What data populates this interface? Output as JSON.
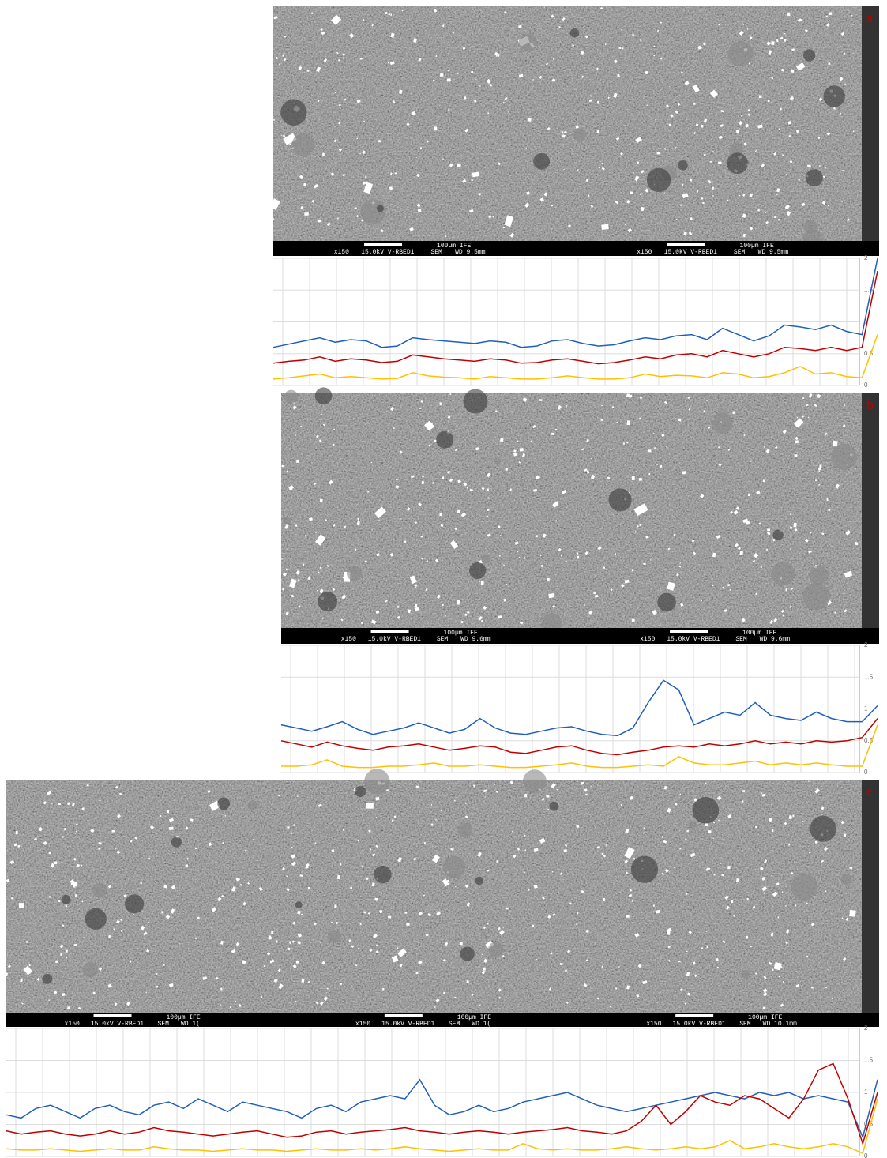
{
  "panels": [
    {
      "label": "a",
      "scale_bars": [
        {
          "scale": "100µm IFE",
          "mag": "x150",
          "kv": "15.0kV V-RBED1",
          "mode": "SEM",
          "wd": "WD 9.5mm"
        },
        {
          "scale": "100µm IFE",
          "mag": "x150",
          "kv": "15.0kV V-RBED1",
          "mode": "SEM",
          "wd": "WD 9.5mm"
        }
      ]
    },
    {
      "label": "b",
      "scale_bars": [
        {
          "scale": "100µm IFE",
          "mag": "x150",
          "kv": "15.0kV V-RBED1",
          "mode": "SEM",
          "wd": "WD 9.6mm"
        },
        {
          "scale": "100µm IFE",
          "mag": "x150",
          "kv": "15.0kV V-RBED1",
          "mode": "SEM",
          "wd": "WD 9.6mm"
        }
      ]
    },
    {
      "label": "c",
      "scale_bars": [
        {
          "scale": "100µm IFE",
          "mag": "x150",
          "kv": "15.0kV V-RBED1",
          "mode": "SEM",
          "wd": "WD 1("
        },
        {
          "scale": "100µm IFE",
          "mag": "x150",
          "kv": "15.0kV V-RBED1",
          "mode": "SEM",
          "wd": "WD 1("
        },
        {
          "scale": "100µm IFE",
          "mag": "x150",
          "kv": "15.0kV V-RBED1",
          "mode": "SEM",
          "wd": "WD 10.1mm"
        }
      ]
    }
  ],
  "chart_data": [
    {
      "type": "line",
      "ylim": [
        0,
        2
      ],
      "yticks": [
        0,
        0.5,
        1,
        1.5,
        2
      ],
      "grid": true,
      "series": [
        {
          "color": "#1f5fbf",
          "values": [
            0.6,
            0.65,
            0.7,
            0.75,
            0.68,
            0.72,
            0.7,
            0.6,
            0.62,
            0.75,
            0.72,
            0.7,
            0.68,
            0.66,
            0.7,
            0.68,
            0.6,
            0.62,
            0.7,
            0.72,
            0.66,
            0.62,
            0.64,
            0.7,
            0.75,
            0.72,
            0.78,
            0.8,
            0.72,
            0.9,
            0.8,
            0.7,
            0.78,
            0.95,
            0.92,
            0.88,
            0.95,
            0.85,
            0.8,
            2.0
          ]
        },
        {
          "color": "#c00000",
          "values": [
            0.35,
            0.38,
            0.4,
            0.45,
            0.38,
            0.42,
            0.4,
            0.36,
            0.38,
            0.48,
            0.45,
            0.42,
            0.4,
            0.38,
            0.42,
            0.4,
            0.35,
            0.36,
            0.4,
            0.42,
            0.38,
            0.34,
            0.36,
            0.4,
            0.45,
            0.42,
            0.48,
            0.5,
            0.45,
            0.55,
            0.5,
            0.45,
            0.5,
            0.6,
            0.58,
            0.55,
            0.6,
            0.55,
            0.6,
            1.8
          ]
        },
        {
          "color": "#ffc000",
          "values": [
            0.1,
            0.12,
            0.15,
            0.18,
            0.12,
            0.14,
            0.12,
            0.1,
            0.11,
            0.2,
            0.15,
            0.13,
            0.12,
            0.1,
            0.14,
            0.12,
            0.1,
            0.1,
            0.12,
            0.15,
            0.12,
            0.1,
            0.1,
            0.12,
            0.18,
            0.14,
            0.16,
            0.15,
            0.12,
            0.2,
            0.18,
            0.12,
            0.14,
            0.2,
            0.3,
            0.18,
            0.2,
            0.14,
            0.12,
            0.8
          ]
        }
      ]
    },
    {
      "type": "line",
      "ylim": [
        0,
        2
      ],
      "yticks": [
        0,
        0.5,
        1,
        1.5,
        2
      ],
      "grid": true,
      "series": [
        {
          "color": "#1f5fbf",
          "values": [
            0.75,
            0.7,
            0.65,
            0.72,
            0.8,
            0.68,
            0.6,
            0.65,
            0.7,
            0.78,
            0.7,
            0.62,
            0.68,
            0.85,
            0.7,
            0.62,
            0.6,
            0.65,
            0.7,
            0.72,
            0.65,
            0.6,
            0.58,
            0.7,
            1.1,
            1.45,
            1.3,
            0.75,
            0.85,
            0.95,
            0.9,
            1.1,
            0.9,
            0.85,
            0.82,
            0.95,
            0.85,
            0.8,
            0.8,
            1.05
          ]
        },
        {
          "color": "#c00000",
          "values": [
            0.5,
            0.45,
            0.4,
            0.48,
            0.42,
            0.38,
            0.35,
            0.4,
            0.42,
            0.45,
            0.4,
            0.35,
            0.38,
            0.42,
            0.4,
            0.32,
            0.3,
            0.35,
            0.4,
            0.42,
            0.35,
            0.3,
            0.28,
            0.32,
            0.35,
            0.4,
            0.42,
            0.4,
            0.45,
            0.42,
            0.45,
            0.5,
            0.45,
            0.48,
            0.45,
            0.5,
            0.48,
            0.5,
            0.55,
            0.85
          ]
        },
        {
          "color": "#ffc000",
          "values": [
            0.1,
            0.1,
            0.12,
            0.2,
            0.1,
            0.08,
            0.08,
            0.1,
            0.1,
            0.12,
            0.15,
            0.1,
            0.1,
            0.12,
            0.1,
            0.08,
            0.08,
            0.1,
            0.12,
            0.15,
            0.1,
            0.08,
            0.08,
            0.1,
            0.12,
            0.1,
            0.25,
            0.15,
            0.12,
            0.12,
            0.15,
            0.18,
            0.12,
            0.15,
            0.12,
            0.15,
            0.12,
            0.1,
            0.1,
            0.75
          ]
        }
      ]
    },
    {
      "type": "line",
      "ylim": [
        0,
        2
      ],
      "yticks": [
        0,
        0.5,
        1,
        1.5,
        2
      ],
      "grid": true,
      "series": [
        {
          "color": "#1f5fbf",
          "values": [
            0.65,
            0.6,
            0.75,
            0.8,
            0.7,
            0.6,
            0.75,
            0.8,
            0.7,
            0.65,
            0.8,
            0.85,
            0.75,
            0.9,
            0.8,
            0.7,
            0.85,
            0.8,
            0.75,
            0.7,
            0.6,
            0.75,
            0.8,
            0.7,
            0.85,
            0.9,
            0.95,
            0.9,
            1.2,
            0.8,
            0.65,
            0.7,
            0.8,
            0.7,
            0.75,
            0.85,
            0.9,
            0.95,
            1.0,
            0.9,
            0.8,
            0.75,
            0.7,
            0.75,
            0.8,
            0.85,
            0.9,
            0.95,
            1.0,
            0.95,
            0.9,
            1.0,
            0.95,
            1.0,
            0.9,
            0.95,
            0.9,
            0.85,
            0.3,
            1.2
          ]
        },
        {
          "color": "#c00000",
          "values": [
            0.4,
            0.35,
            0.38,
            0.4,
            0.35,
            0.32,
            0.35,
            0.4,
            0.35,
            0.38,
            0.45,
            0.4,
            0.38,
            0.35,
            0.32,
            0.35,
            0.38,
            0.4,
            0.35,
            0.3,
            0.32,
            0.38,
            0.4,
            0.35,
            0.38,
            0.4,
            0.42,
            0.45,
            0.4,
            0.38,
            0.35,
            0.38,
            0.4,
            0.38,
            0.35,
            0.38,
            0.4,
            0.42,
            0.45,
            0.4,
            0.38,
            0.35,
            0.4,
            0.55,
            0.8,
            0.5,
            0.7,
            0.95,
            0.85,
            0.8,
            0.95,
            0.9,
            0.75,
            0.6,
            0.9,
            1.35,
            1.45,
            0.9,
            0.2,
            1.0
          ]
        },
        {
          "color": "#ffc000",
          "values": [
            0.12,
            0.1,
            0.1,
            0.12,
            0.1,
            0.08,
            0.1,
            0.12,
            0.1,
            0.1,
            0.15,
            0.12,
            0.1,
            0.1,
            0.08,
            0.1,
            0.12,
            0.1,
            0.1,
            0.08,
            0.1,
            0.12,
            0.1,
            0.1,
            0.12,
            0.1,
            0.12,
            0.15,
            0.12,
            0.1,
            0.08,
            0.1,
            0.12,
            0.1,
            0.1,
            0.2,
            0.12,
            0.1,
            0.12,
            0.1,
            0.1,
            0.12,
            0.15,
            0.12,
            0.1,
            0.12,
            0.15,
            0.12,
            0.15,
            0.25,
            0.12,
            0.15,
            0.2,
            0.15,
            0.12,
            0.15,
            0.2,
            0.15,
            0.05,
            0.9
          ]
        }
      ]
    }
  ]
}
